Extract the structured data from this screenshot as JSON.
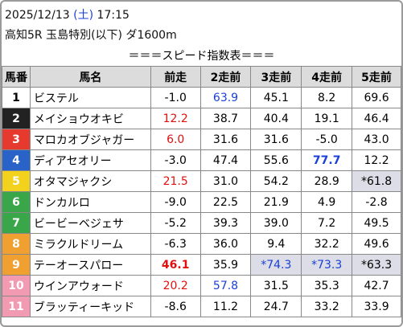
{
  "header": {
    "date": "2025/12/13",
    "weekday": "(土)",
    "time": "17:15",
    "race": "高知5R 玉島特別(以下) ダ1600m",
    "title": "＝＝＝スピード指数表＝＝＝"
  },
  "table": {
    "columns": [
      "馬番",
      "馬名",
      "前走",
      "2走前",
      "3走前",
      "4走前",
      "5走前"
    ],
    "rows": [
      {
        "number": "1",
        "name": "ビステル",
        "frame_color": "#ffffff",
        "number_color": "#000000",
        "scores": [
          "-1.0",
          "63.9",
          "45.1",
          "8.2",
          "69.6"
        ]
      },
      {
        "number": "2",
        "name": "メイショウオキビ",
        "frame_color": "#222222",
        "number_color": "#ffffff",
        "scores": [
          "12.2",
          "38.7",
          "40.4",
          "19.1",
          "46.4"
        ]
      },
      {
        "number": "3",
        "name": "マロカオブジャガー",
        "frame_color": "#e63a2e",
        "number_color": "#ffffff",
        "scores": [
          "6.0",
          "31.6",
          "31.6",
          "-5.0",
          "43.0"
        ]
      },
      {
        "number": "4",
        "name": "ディアセオリー",
        "frame_color": "#2a63c8",
        "number_color": "#ffffff",
        "scores": [
          "-3.0",
          "47.4",
          "55.6",
          "77.7",
          "12.2"
        ]
      },
      {
        "number": "5",
        "name": "オタマジャクシ",
        "frame_color": "#f2d21c",
        "number_color": "#ffffff",
        "scores": [
          "21.5",
          "31.0",
          "54.2",
          "28.9",
          "*61.8"
        ]
      },
      {
        "number": "6",
        "name": "ドンカルロ",
        "frame_color": "#3aa64a",
        "number_color": "#ffffff",
        "scores": [
          "-9.0",
          "22.5",
          "21.9",
          "4.9",
          "-2.8"
        ]
      },
      {
        "number": "7",
        "name": "ビービーベジェサ",
        "frame_color": "#3aa64a",
        "number_color": "#ffffff",
        "scores": [
          "-5.2",
          "39.3",
          "39.0",
          "7.2",
          "49.5"
        ]
      },
      {
        "number": "8",
        "name": "ミラクルドリーム",
        "frame_color": "#f0a030",
        "number_color": "#ffffff",
        "scores": [
          "-6.3",
          "36.0",
          "9.4",
          "32.2",
          "49.6"
        ]
      },
      {
        "number": "9",
        "name": "テーオースパロー",
        "frame_color": "#f0a030",
        "number_color": "#ffffff",
        "scores": [
          "46.1",
          "35.9",
          "*74.3",
          "*73.3",
          "*63.3"
        ]
      },
      {
        "number": "10",
        "name": "ウインアウォード",
        "frame_color": "#f29ab2",
        "number_color": "#ffffff",
        "scores": [
          "20.2",
          "57.8",
          "31.5",
          "35.3",
          "42.7"
        ]
      },
      {
        "number": "11",
        "name": "ブラッティーキッド",
        "frame_color": "#f29ab2",
        "number_color": "#ffffff",
        "scores": [
          "-8.6",
          "11.2",
          "24.7",
          "33.2",
          "33.9"
        ]
      }
    ]
  }
}
